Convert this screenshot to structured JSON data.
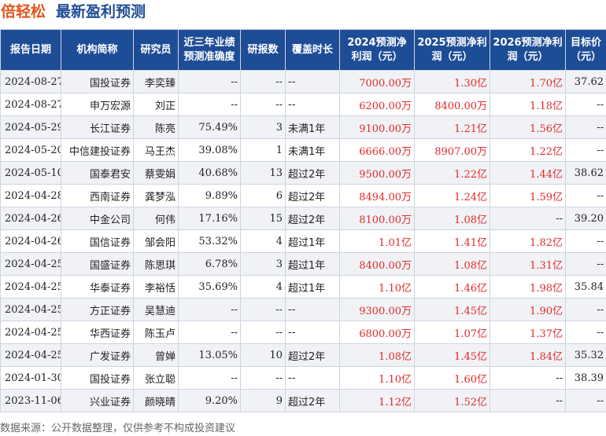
{
  "header": {
    "stock_name": "倍轻松",
    "title": "最新盈利预测"
  },
  "table": {
    "columns": [
      "报告日期",
      "机构简称",
      "研究员",
      "近三年业绩预测准确度",
      "研报数",
      "覆盖时长",
      "2024预测净利润（元）",
      "2025预测净利润（元）",
      "2026预测净利润（元）",
      "目标价（元）"
    ],
    "rows": [
      [
        "2024-08-27",
        "国投证券",
        "李奕臻",
        "--",
        "--",
        "--",
        "7000.00万",
        "1.30亿",
        "1.70亿",
        "37.62"
      ],
      [
        "2024-08-27",
        "申万宏源",
        "刘正",
        "--",
        "--",
        "--",
        "6200.00万",
        "8400.00万",
        "1.18亿",
        "--"
      ],
      [
        "2024-05-29",
        "长江证券",
        "陈亮",
        "75.49%",
        "3",
        "未满1年",
        "9100.00万",
        "1.21亿",
        "1.56亿",
        "--"
      ],
      [
        "2024-05-20",
        "中信建投证券",
        "马王杰",
        "39.08%",
        "1",
        "未满1年",
        "6666.00万",
        "8907.00万",
        "1.22亿",
        "--"
      ],
      [
        "2024-05-10",
        "国泰君安",
        "蔡雯娟",
        "40.68%",
        "13",
        "超过2年",
        "9500.00万",
        "1.22亿",
        "1.44亿",
        "38.62"
      ],
      [
        "2024-04-28",
        "西南证券",
        "龚梦泓",
        "9.89%",
        "6",
        "超过2年",
        "8494.00万",
        "1.24亿",
        "1.59亿",
        "--"
      ],
      [
        "2024-04-26",
        "中金公司",
        "何伟",
        "17.16%",
        "15",
        "超过2年",
        "8100.00万",
        "1.08亿",
        "--",
        "39.20"
      ],
      [
        "2024-04-26",
        "国信证券",
        "邹会阳",
        "53.32%",
        "4",
        "超过1年",
        "1.01亿",
        "1.41亿",
        "1.82亿",
        "--"
      ],
      [
        "2024-04-25",
        "国盛证券",
        "陈思琪",
        "6.78%",
        "3",
        "超过1年",
        "8400.00万",
        "1.08亿",
        "1.31亿",
        "--"
      ],
      [
        "2024-04-25",
        "华泰证券",
        "李裕恬",
        "35.69%",
        "4",
        "超过1年",
        "1.10亿",
        "1.46亿",
        "1.98亿",
        "35.84"
      ],
      [
        "2024-04-25",
        "方正证券",
        "吴慧迪",
        "--",
        "--",
        "--",
        "9300.00万",
        "1.45亿",
        "1.90亿",
        "--"
      ],
      [
        "2024-04-25",
        "华西证券",
        "陈玉卢",
        "--",
        "--",
        "--",
        "6800.00万",
        "1.07亿",
        "1.37亿",
        "--"
      ],
      [
        "2024-04-25",
        "广发证券",
        "曾婵",
        "13.05%",
        "10",
        "超过2年",
        "1.08亿",
        "1.45亿",
        "1.84亿",
        "35.32"
      ],
      [
        "2024-01-30",
        "国投证券",
        "张立聪",
        "--",
        "--",
        "--",
        "1.10亿",
        "1.60亿",
        "--",
        "38.39"
      ],
      [
        "2023-11-06",
        "兴业证券",
        "颜晓晴",
        "9.20%",
        "9",
        "超过2年",
        "1.12亿",
        "1.52亿",
        "--",
        "--"
      ]
    ]
  },
  "footer": {
    "source": "数据来源：公开数据整理，仅供参考不构成投资建议"
  },
  "colors": {
    "header_bg": "#1e4d97",
    "stock_name": "#e4531c",
    "title": "#1f4e96",
    "forecast_value": "#e02a2a",
    "row_alt": "#f1f2f6"
  }
}
